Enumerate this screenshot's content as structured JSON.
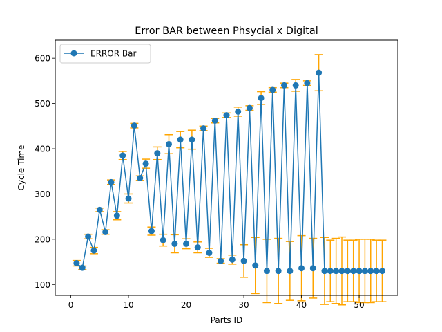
{
  "chart_data": {
    "type": "line",
    "title": "Error BAR between Phsycial x Digital",
    "xlabel": "Parts ID",
    "ylabel": "Cycle Time",
    "xlim": [
      -2.7,
      56.7
    ],
    "ylim": [
      76,
      640
    ],
    "xticks": [
      0,
      10,
      20,
      30,
      40,
      50
    ],
    "yticks": [
      100,
      200,
      300,
      400,
      500,
      600
    ],
    "grid": false,
    "legend_position": "top-left",
    "colors": {
      "line": "#1f77b4",
      "errorbar": "#ffa500"
    },
    "series": [
      {
        "name": "ERROR Bar",
        "x": [
          1,
          2,
          3,
          4,
          5,
          6,
          7,
          8,
          9,
          10,
          11,
          12,
          13,
          14,
          15,
          16,
          17,
          18,
          19,
          20,
          21,
          22,
          23,
          24,
          25,
          26,
          27,
          28,
          29,
          30,
          31,
          32,
          33,
          34,
          35,
          36,
          37,
          38,
          39,
          40,
          41,
          42,
          43,
          44,
          45,
          46,
          47,
          48,
          49,
          50,
          51,
          52,
          53,
          54
        ],
        "y": [
          147,
          137,
          206,
          175,
          265,
          216,
          326,
          252,
          385,
          290,
          451,
          335,
          367,
          218,
          390,
          198,
          410,
          190,
          420,
          190,
          420,
          182,
          445,
          170,
          462,
          152,
          474,
          155,
          482,
          152,
          490,
          142,
          512,
          130,
          530,
          130,
          540,
          130,
          540,
          136,
          545,
          136,
          568,
          130,
          130,
          130,
          130,
          130,
          130,
          130,
          130,
          130,
          130,
          130
        ],
        "error": [
          6,
          4,
          5,
          7,
          4,
          5,
          5,
          9,
          9,
          10,
          5,
          5,
          10,
          9,
          14,
          13,
          21,
          20,
          18,
          11,
          21,
          12,
          5,
          10,
          5,
          5,
          5,
          10,
          10,
          36,
          5,
          62,
          14,
          70,
          5,
          72,
          5,
          65,
          13,
          72,
          5,
          66,
          40,
          74,
          68,
          72,
          75,
          68,
          68,
          70,
          70,
          70,
          68,
          68
        ]
      }
    ]
  }
}
